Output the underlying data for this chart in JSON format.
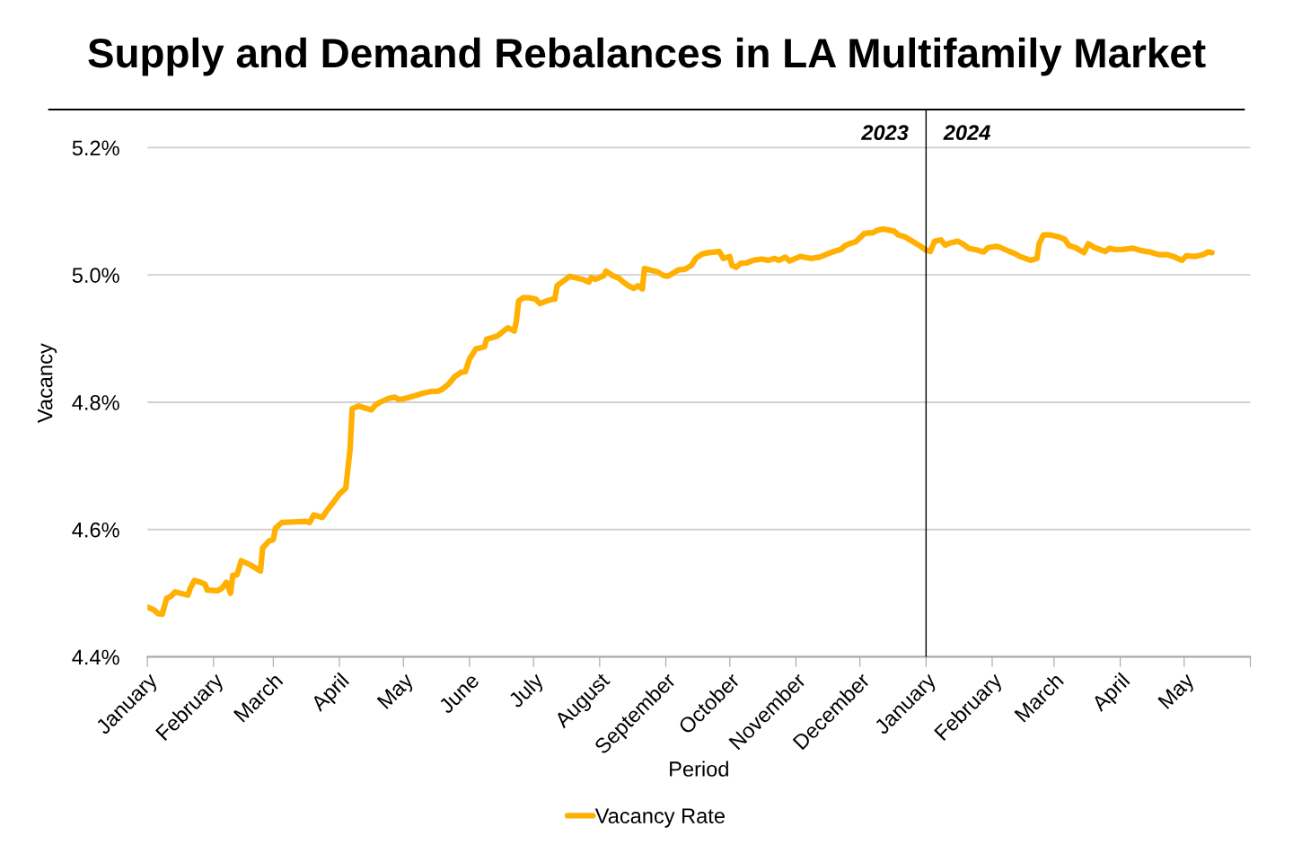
{
  "chart_data": {
    "type": "line",
    "title": "Supply and Demand Rebalances in LA Multifamily Market",
    "xlabel": "Period",
    "ylabel": "Vacancy",
    "xlim": [
      "2023-01-01",
      "2024-06-01"
    ],
    "ylim": [
      4.4,
      5.26
    ],
    "yticks": [
      {
        "value": 4.4,
        "label": "4.4%"
      },
      {
        "value": 4.6,
        "label": "4.6%"
      },
      {
        "value": 4.8,
        "label": "4.8%"
      },
      {
        "value": 5.0,
        "label": "5.0%"
      },
      {
        "value": 5.2,
        "label": "5.2%"
      }
    ],
    "xticks": [
      {
        "value": "2023-01-01",
        "label": "January"
      },
      {
        "value": "2023-02-01",
        "label": "February"
      },
      {
        "value": "2023-03-01",
        "label": "March"
      },
      {
        "value": "2023-04-01",
        "label": "April"
      },
      {
        "value": "2023-05-01",
        "label": "May"
      },
      {
        "value": "2023-06-01",
        "label": "June"
      },
      {
        "value": "2023-07-01",
        "label": "July"
      },
      {
        "value": "2023-08-01",
        "label": "August"
      },
      {
        "value": "2023-09-01",
        "label": "September"
      },
      {
        "value": "2023-10-01",
        "label": "October"
      },
      {
        "value": "2023-11-01",
        "label": "November"
      },
      {
        "value": "2023-12-01",
        "label": "December"
      },
      {
        "value": "2024-01-01",
        "label": "January"
      },
      {
        "value": "2024-02-01",
        "label": "February"
      },
      {
        "value": "2024-03-01",
        "label": "March"
      },
      {
        "value": "2024-04-01",
        "label": "April"
      },
      {
        "value": "2024-05-01",
        "label": "May"
      },
      {
        "value": "2024-06-01",
        "label": null
      }
    ],
    "grid": "y",
    "legend": "bottom",
    "marker": "none",
    "line_style": "solid",
    "ref_lines": [
      {
        "axis": "x",
        "value": "2024-01-01",
        "color": "#000000"
      }
    ],
    "annotations": [
      "2023",
      "2024"
    ],
    "x": [
      "2023-01-01",
      "2023-01-04",
      "2023-01-06",
      "2023-01-08",
      "2023-01-10",
      "2023-01-12",
      "2023-01-14",
      "2023-01-20",
      "2023-01-21",
      "2023-01-23",
      "2023-01-26",
      "2023-01-28",
      "2023-01-29",
      "2023-02-03",
      "2023-02-05",
      "2023-02-07",
      "2023-02-09",
      "2023-02-10",
      "2023-02-12",
      "2023-02-14",
      "2023-02-18",
      "2023-02-23",
      "2023-02-24",
      "2023-02-27",
      "2023-03-01",
      "2023-03-02",
      "2023-03-05",
      "2023-03-11",
      "2023-03-16",
      "2023-03-18",
      "2023-03-20",
      "2023-03-24",
      "2023-03-26",
      "2023-03-29",
      "2023-04-01",
      "2023-04-04",
      "2023-04-06",
      "2023-04-07",
      "2023-04-10",
      "2023-04-16",
      "2023-04-18",
      "2023-04-20",
      "2023-04-24",
      "2023-04-27",
      "2023-04-29",
      "2023-05-03",
      "2023-05-07",
      "2023-05-10",
      "2023-05-14",
      "2023-05-17",
      "2023-05-19",
      "2023-05-22",
      "2023-05-25",
      "2023-05-28",
      "2023-05-30",
      "2023-06-01",
      "2023-06-04",
      "2023-06-08",
      "2023-06-09",
      "2023-06-12",
      "2023-06-14",
      "2023-06-17",
      "2023-06-19",
      "2023-06-22",
      "2023-06-23",
      "2023-06-24",
      "2023-06-26",
      "2023-06-29",
      "2023-07-02",
      "2023-07-04",
      "2023-07-07",
      "2023-07-10",
      "2023-07-11",
      "2023-07-12",
      "2023-07-16",
      "2023-07-18",
      "2023-07-20",
      "2023-07-24",
      "2023-07-27",
      "2023-07-28",
      "2023-07-30",
      "2023-08-03",
      "2023-08-04",
      "2023-08-07",
      "2023-08-10",
      "2023-08-12",
      "2023-08-15",
      "2023-08-17",
      "2023-08-19",
      "2023-08-21",
      "2023-08-22",
      "2023-08-28",
      "2023-08-31",
      "2023-09-02",
      "2023-09-07",
      "2023-09-10",
      "2023-09-13",
      "2023-09-15",
      "2023-09-18",
      "2023-09-21",
      "2023-09-24",
      "2023-09-26",
      "2023-09-28",
      "2023-10-01",
      "2023-10-02",
      "2023-10-04",
      "2023-10-06",
      "2023-10-09",
      "2023-10-12",
      "2023-10-16",
      "2023-10-19",
      "2023-10-22",
      "2023-10-24",
      "2023-10-27",
      "2023-10-29",
      "2023-11-03",
      "2023-11-08",
      "2023-11-12",
      "2023-11-15",
      "2023-11-18",
      "2023-11-22",
      "2023-11-24",
      "2023-11-26",
      "2023-11-29",
      "2023-12-03",
      "2023-12-05",
      "2023-12-07",
      "2023-12-09",
      "2023-12-12",
      "2023-12-17",
      "2023-12-19",
      "2023-12-22",
      "2023-12-24",
      "2023-12-27",
      "2023-12-29",
      "2024-01-01",
      "2024-01-03",
      "2024-01-05",
      "2024-01-08",
      "2024-01-10",
      "2024-01-12",
      "2024-01-16",
      "2024-01-19",
      "2024-01-21",
      "2024-01-25",
      "2024-01-28",
      "2024-01-30",
      "2024-02-03",
      "2024-02-05",
      "2024-02-09",
      "2024-02-12",
      "2024-02-14",
      "2024-02-19",
      "2024-02-22",
      "2024-02-23",
      "2024-02-25",
      "2024-02-28",
      "2024-03-03",
      "2024-03-06",
      "2024-03-08",
      "2024-03-11",
      "2024-03-14",
      "2024-03-15",
      "2024-03-17",
      "2024-03-20",
      "2024-03-25",
      "2024-03-27",
      "2024-03-29",
      "2024-04-02",
      "2024-04-07",
      "2024-04-10",
      "2024-04-13",
      "2024-04-15",
      "2024-04-19",
      "2024-04-23",
      "2024-04-26",
      "2024-04-28",
      "2024-04-30",
      "2024-05-02",
      "2024-05-06",
      "2024-05-10",
      "2024-05-12",
      "2024-05-14"
    ],
    "series": [
      {
        "name": "Vacancy Rate",
        "color": "#ffb000",
        "values": [
          4.478,
          4.474,
          4.468,
          4.467,
          4.492,
          4.495,
          4.502,
          4.497,
          4.507,
          4.52,
          4.517,
          4.514,
          4.505,
          4.504,
          4.508,
          4.517,
          4.5,
          4.528,
          4.529,
          4.551,
          4.545,
          4.535,
          4.571,
          4.582,
          4.584,
          4.602,
          4.611,
          4.612,
          4.613,
          4.611,
          4.623,
          4.619,
          4.629,
          4.642,
          4.656,
          4.665,
          4.726,
          4.79,
          4.794,
          4.788,
          4.796,
          4.8,
          4.806,
          4.808,
          4.804,
          4.807,
          4.811,
          4.814,
          4.817,
          4.817,
          4.82,
          4.828,
          4.84,
          4.847,
          4.848,
          4.868,
          4.884,
          4.887,
          4.899,
          4.902,
          4.904,
          4.912,
          4.917,
          4.912,
          4.929,
          4.959,
          4.964,
          4.964,
          4.962,
          4.955,
          4.959,
          4.962,
          4.962,
          4.983,
          4.993,
          4.998,
          4.996,
          4.993,
          4.989,
          4.996,
          4.993,
          4.999,
          5.006,
          4.999,
          4.995,
          4.989,
          4.982,
          4.979,
          4.983,
          4.978,
          5.01,
          5.005,
          4.999,
          4.998,
          5.008,
          5.009,
          5.015,
          5.026,
          5.033,
          5.035,
          5.036,
          5.037,
          5.026,
          5.029,
          5.015,
          5.012,
          5.018,
          5.019,
          5.023,
          5.025,
          5.023,
          5.026,
          5.023,
          5.028,
          5.022,
          5.029,
          5.026,
          5.028,
          5.032,
          5.036,
          5.04,
          5.046,
          5.049,
          5.052,
          5.065,
          5.066,
          5.066,
          5.07,
          5.072,
          5.069,
          5.063,
          5.06,
          5.056,
          5.05,
          5.046,
          5.039,
          5.037,
          5.053,
          5.055,
          5.047,
          5.05,
          5.053,
          5.047,
          5.042,
          5.039,
          5.036,
          5.043,
          5.045,
          5.043,
          5.037,
          5.033,
          5.029,
          5.023,
          5.026,
          5.049,
          5.063,
          5.063,
          5.06,
          5.056,
          5.046,
          5.043,
          5.037,
          5.035,
          5.049,
          5.043,
          5.037,
          5.042,
          5.04,
          5.04,
          5.042,
          5.039,
          5.037,
          5.036,
          5.032,
          5.032,
          5.029,
          5.026,
          5.023,
          5.03,
          5.029,
          5.032,
          5.036,
          5.035
        ]
      }
    ]
  }
}
